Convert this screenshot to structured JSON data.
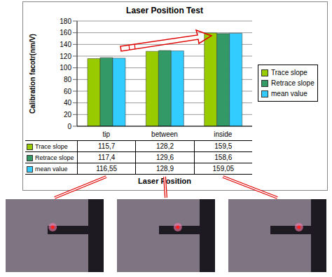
{
  "chart_data": {
    "type": "bar",
    "title": "Laser Position Test",
    "x_label": "Laser Position",
    "y_label": "Calibration facotr(nm/V)",
    "categories": [
      "tip",
      "between",
      "inside"
    ],
    "series": [
      {
        "name": "Trace slope",
        "color": "#99cc00",
        "values": [
          115.7,
          128.2,
          159.5
        ],
        "value_labels": [
          "115,7",
          "128,2",
          "159,5"
        ]
      },
      {
        "name": "Retrace slope",
        "color": "#339966",
        "values": [
          117.4,
          129.6,
          158.6
        ],
        "value_labels": [
          "117,4",
          "129,6",
          "158,6"
        ]
      },
      {
        "name": "mean value",
        "color": "#33ccff",
        "values": [
          116.55,
          128.9,
          159.05
        ],
        "value_labels": [
          "116,55",
          "128,9",
          "159,05"
        ]
      }
    ],
    "ylim": [
      0,
      180
    ],
    "yticks": [
      0,
      20,
      40,
      60,
      80,
      100,
      120,
      140,
      160,
      180
    ],
    "grid": true,
    "legend": "right"
  }
}
